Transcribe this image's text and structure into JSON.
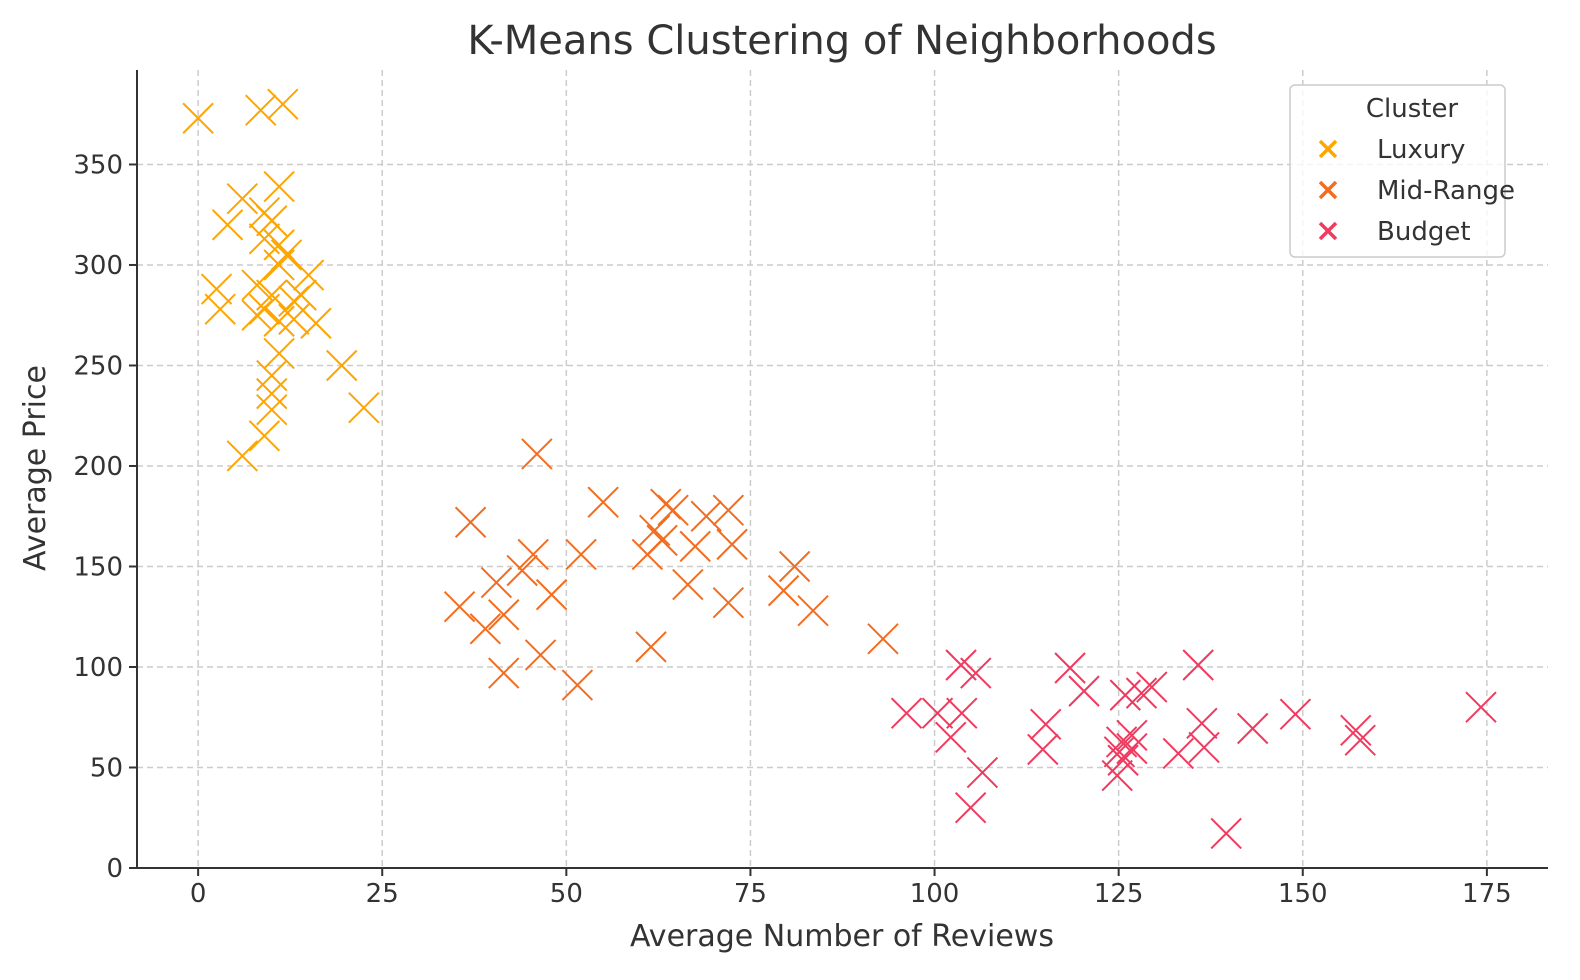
{
  "chart_data": {
    "type": "scatter",
    "title": "K-Means Clustering of Neighborhoods",
    "xlabel": "Average Number of Reviews",
    "ylabel": "Average Price",
    "xlim": [
      -8.3,
      183.3
    ],
    "ylim": [
      0,
      397
    ],
    "xticks": [
      0,
      25,
      50,
      75,
      100,
      125,
      150,
      175
    ],
    "yticks": [
      0,
      50,
      100,
      150,
      200,
      250,
      300,
      350
    ],
    "grid": true,
    "marker": "x",
    "legend": {
      "title": "Cluster",
      "placement": "top-right"
    },
    "series": [
      {
        "name": "Luxury",
        "color": "#FFA500",
        "points": [
          [
            0,
            373
          ],
          [
            8.5,
            377
          ],
          [
            11.5,
            380
          ],
          [
            6,
            333
          ],
          [
            4,
            320
          ],
          [
            9,
            326
          ],
          [
            11,
            339
          ],
          [
            10,
            322
          ],
          [
            9,
            313
          ],
          [
            12,
            305
          ],
          [
            11,
            300
          ],
          [
            11,
            310
          ],
          [
            2.5,
            288
          ],
          [
            3,
            278
          ],
          [
            8,
            290
          ],
          [
            8,
            275
          ],
          [
            10,
            285
          ],
          [
            9,
            278
          ],
          [
            14,
            285
          ],
          [
            15,
            295
          ],
          [
            11,
            272
          ],
          [
            13,
            273
          ],
          [
            16,
            271
          ],
          [
            11,
            256
          ],
          [
            19.5,
            250
          ],
          [
            10,
            245
          ],
          [
            10,
            236
          ],
          [
            22.5,
            229
          ],
          [
            10,
            228
          ],
          [
            9,
            215
          ],
          [
            6,
            205
          ],
          [
            13,
            282
          ]
        ]
      },
      {
        "name": "Mid-Range",
        "color": "#F46D1F",
        "points": [
          [
            46,
            206
          ],
          [
            37,
            172
          ],
          [
            55,
            182
          ],
          [
            63.5,
            181
          ],
          [
            64.5,
            178
          ],
          [
            69,
            175
          ],
          [
            72,
            178
          ],
          [
            62,
            168
          ],
          [
            63,
            163
          ],
          [
            67.5,
            160
          ],
          [
            72.5,
            161
          ],
          [
            52,
            156
          ],
          [
            45.5,
            156
          ],
          [
            61,
            156
          ],
          [
            44,
            148
          ],
          [
            81,
            150
          ],
          [
            40.5,
            142
          ],
          [
            48,
            136
          ],
          [
            66.5,
            141
          ],
          [
            79.5,
            138
          ],
          [
            72,
            132
          ],
          [
            35.5,
            130
          ],
          [
            41.5,
            126
          ],
          [
            39,
            119
          ],
          [
            83.5,
            128
          ],
          [
            93,
            114
          ],
          [
            61.5,
            110
          ],
          [
            46.5,
            106
          ],
          [
            41.5,
            97
          ],
          [
            51.5,
            91
          ]
        ]
      },
      {
        "name": "Budget",
        "color": "#F03A5F",
        "points": [
          [
            96.2,
            77
          ],
          [
            100.4,
            77
          ],
          [
            103.7,
            77
          ],
          [
            102.2,
            65
          ],
          [
            106.5,
            47.5
          ],
          [
            104.9,
            30
          ],
          [
            103.6,
            101
          ],
          [
            105.6,
            97
          ],
          [
            118.4,
            99.5
          ],
          [
            120.3,
            88
          ],
          [
            115.1,
            71.5
          ],
          [
            114.7,
            59
          ],
          [
            125.9,
            86
          ],
          [
            128.1,
            87
          ],
          [
            129.5,
            90
          ],
          [
            126.8,
            66
          ],
          [
            126.8,
            59.4
          ],
          [
            125.4,
            62.7
          ],
          [
            125.1,
            57.8
          ],
          [
            124.8,
            46
          ],
          [
            125.6,
            53.6
          ],
          [
            135.8,
            101
          ],
          [
            136.3,
            72
          ],
          [
            136.6,
            60
          ],
          [
            133.1,
            57
          ],
          [
            143.2,
            69.4
          ],
          [
            149,
            76.5
          ],
          [
            157.2,
            68.5
          ],
          [
            157.8,
            63.6
          ],
          [
            174.2,
            80
          ],
          [
            139.6,
            17.2
          ]
        ]
      }
    ]
  }
}
